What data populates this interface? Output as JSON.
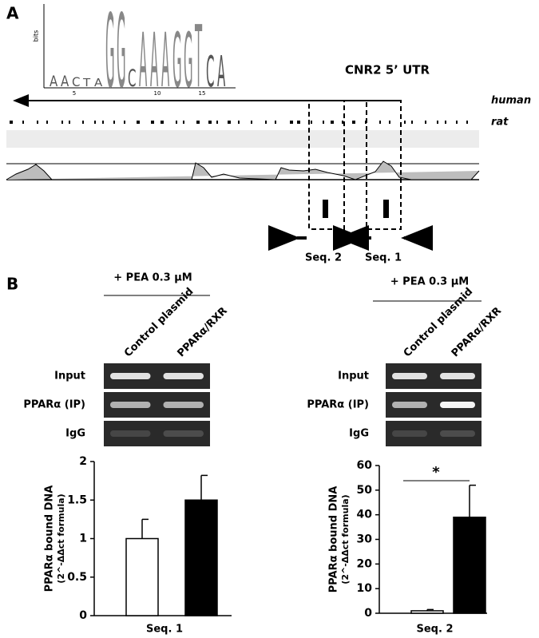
{
  "panel_a": {
    "label": "A",
    "logo_axis": "bits",
    "logo_ticks": [
      "5",
      "10",
      "15"
    ],
    "logo_letters": [
      "A",
      "A",
      "C",
      "T",
      "A",
      "G",
      "G",
      "C",
      "A",
      "A",
      "A",
      "G",
      "G",
      "T",
      "C",
      "A"
    ],
    "title": "CNR2 5’ UTR",
    "species": [
      "human",
      "rat"
    ],
    "sequences": [
      "Seq. 2",
      "Seq. 1"
    ]
  },
  "panel_b": {
    "label": "B",
    "gels": [
      {
        "treatment": "+ PEA 0.3 μM",
        "columns": [
          "Control plasmid",
          "PPARα/RXR"
        ],
        "rows": [
          "Input",
          "PPARα (IP)",
          "IgG"
        ]
      },
      {
        "treatment": "+ PEA 0.3 μM",
        "columns": [
          "Control plasmid",
          "PPARα/RXR"
        ],
        "rows": [
          "Input",
          "PPARα (IP)",
          "IgG"
        ]
      }
    ]
  },
  "chart_data": [
    {
      "type": "bar",
      "xlabel": "Seq. 1",
      "ylabel": [
        "PPARα bound DNA",
        "(2^-ΔΔct formula)"
      ],
      "categories": [
        null,
        null
      ],
      "values": [
        1,
        1.5
      ],
      "errors": [
        0.25,
        0.32
      ],
      "colors": [
        "#ffffff",
        "#000000"
      ],
      "ylim": [
        0,
        2
      ],
      "yticks": [
        0,
        0.5,
        1,
        1.5,
        2
      ]
    },
    {
      "type": "bar",
      "xlabel": "Seq. 2",
      "ylabel": [
        "PPARα bound DNA",
        "(2^-ΔΔct formula)"
      ],
      "categories": [
        null,
        null
      ],
      "values": [
        1,
        39
      ],
      "errors": [
        0.5,
        13
      ],
      "colors": [
        "#ffffff",
        "#000000"
      ],
      "ylim": [
        0,
        60
      ],
      "yticks": [
        0,
        10,
        20,
        30,
        40,
        50,
        60
      ],
      "annotation": "*"
    }
  ]
}
